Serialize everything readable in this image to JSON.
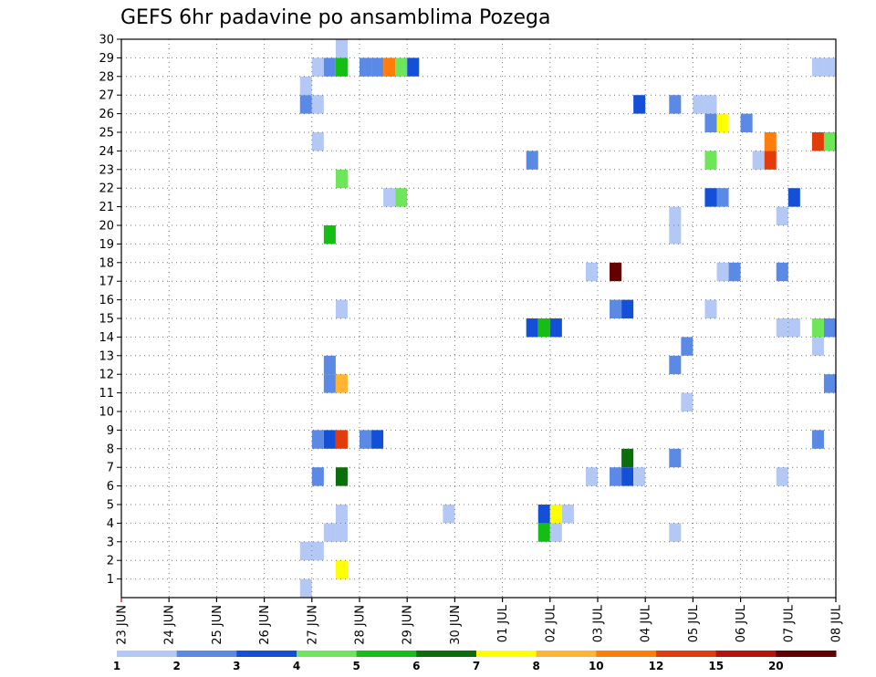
{
  "chart_data": {
    "type": "heatmap",
    "title": "GEFS 6hr padavine po ansamblima Pozega",
    "y_ticks": [
      "1",
      "2",
      "3",
      "4",
      "5",
      "6",
      "7",
      "8",
      "9",
      "10",
      "11",
      "12",
      "13",
      "14",
      "15",
      "16",
      "17",
      "18",
      "19",
      "20",
      "21",
      "22",
      "23",
      "24",
      "25",
      "26",
      "27",
      "28",
      "29",
      "30"
    ],
    "ylim": [
      0,
      30
    ],
    "x_tick_labels": [
      "23 JUN",
      "24 JUN",
      "25 JUN",
      "26 JUN",
      "27 JUN",
      "28 JUN",
      "29 JUN",
      "30 JUN",
      "01 JUL",
      "02 JUL",
      "03 JUL",
      "04 JUL",
      "05 JUL",
      "06 JUL",
      "07 JUL",
      "08 JUL"
    ],
    "x_step_unit": "6 h",
    "x_steps_per_day": 4,
    "grid": true,
    "colorbar": {
      "labels": [
        "1",
        "2",
        "3",
        "4",
        "5",
        "6",
        "7",
        "8",
        "10",
        "12",
        "15",
        "20"
      ],
      "colors": [
        "#b4c8f5",
        "#5a8ae6",
        "#1450d7",
        "#6ee65a",
        "#14be14",
        "#0a6e0a",
        "#ffff00",
        "#ffb432",
        "#ff7d0a",
        "#e13c0a",
        "#b4140a",
        "#640000"
      ]
    },
    "cells": [
      {
        "step": 16,
        "member": 0,
        "level": 0
      },
      {
        "step": 19,
        "member": 1,
        "level": 6
      },
      {
        "step": 16,
        "member": 2,
        "level": 0
      },
      {
        "step": 17,
        "member": 2,
        "level": 0
      },
      {
        "step": 18,
        "member": 3,
        "level": 0
      },
      {
        "step": 19,
        "member": 3,
        "level": 0
      },
      {
        "step": 36,
        "member": 3,
        "level": 4
      },
      {
        "step": 37,
        "member": 3,
        "level": 0
      },
      {
        "step": 47,
        "member": 3,
        "level": 0
      },
      {
        "step": 19,
        "member": 4,
        "level": 0
      },
      {
        "step": 28,
        "member": 4,
        "level": 0
      },
      {
        "step": 36,
        "member": 4,
        "level": 2
      },
      {
        "step": 37,
        "member": 4,
        "level": 6
      },
      {
        "step": 38,
        "member": 4,
        "level": 0
      },
      {
        "step": 17,
        "member": 6,
        "level": 1
      },
      {
        "step": 19,
        "member": 6,
        "level": 5
      },
      {
        "step": 40,
        "member": 6,
        "level": 0
      },
      {
        "step": 42,
        "member": 6,
        "level": 1
      },
      {
        "step": 43,
        "member": 6,
        "level": 2
      },
      {
        "step": 44,
        "member": 6,
        "level": 0
      },
      {
        "step": 56,
        "member": 6,
        "level": 0
      },
      {
        "step": 43,
        "member": 7,
        "level": 5
      },
      {
        "step": 47,
        "member": 7,
        "level": 1
      },
      {
        "step": 17,
        "member": 8,
        "level": 1
      },
      {
        "step": 18,
        "member": 8,
        "level": 2
      },
      {
        "step": 19,
        "member": 8,
        "level": 9
      },
      {
        "step": 21,
        "member": 8,
        "level": 1
      },
      {
        "step": 22,
        "member": 8,
        "level": 2
      },
      {
        "step": 59,
        "member": 8,
        "level": 1
      },
      {
        "step": 48,
        "member": 10,
        "level": 0
      },
      {
        "step": 18,
        "member": 11,
        "level": 1
      },
      {
        "step": 19,
        "member": 11,
        "level": 7
      },
      {
        "step": 60,
        "member": 11,
        "level": 1
      },
      {
        "step": 18,
        "member": 12,
        "level": 1
      },
      {
        "step": 47,
        "member": 12,
        "level": 1
      },
      {
        "step": 48,
        "member": 13,
        "level": 1
      },
      {
        "step": 59,
        "member": 13,
        "level": 0
      },
      {
        "step": 35,
        "member": 14,
        "level": 2
      },
      {
        "step": 36,
        "member": 14,
        "level": 4
      },
      {
        "step": 37,
        "member": 14,
        "level": 2
      },
      {
        "step": 56,
        "member": 14,
        "level": 0
      },
      {
        "step": 57,
        "member": 14,
        "level": 0
      },
      {
        "step": 59,
        "member": 14,
        "level": 3
      },
      {
        "step": 60,
        "member": 14,
        "level": 1
      },
      {
        "step": 19,
        "member": 15,
        "level": 0
      },
      {
        "step": 42,
        "member": 15,
        "level": 1
      },
      {
        "step": 43,
        "member": 15,
        "level": 2
      },
      {
        "step": 50,
        "member": 15,
        "level": 0
      },
      {
        "step": 40,
        "member": 17,
        "level": 0
      },
      {
        "step": 42,
        "member": 17,
        "level": 11
      },
      {
        "step": 51,
        "member": 17,
        "level": 0
      },
      {
        "step": 52,
        "member": 17,
        "level": 1
      },
      {
        "step": 56,
        "member": 17,
        "level": 1
      },
      {
        "step": 18,
        "member": 19,
        "level": 4
      },
      {
        "step": 47,
        "member": 19,
        "level": 0
      },
      {
        "step": 47,
        "member": 20,
        "level": 0
      },
      {
        "step": 56,
        "member": 20,
        "level": 0
      },
      {
        "step": 23,
        "member": 21,
        "level": 0
      },
      {
        "step": 24,
        "member": 21,
        "level": 3
      },
      {
        "step": 50,
        "member": 21,
        "level": 2
      },
      {
        "step": 51,
        "member": 21,
        "level": 1
      },
      {
        "step": 57,
        "member": 21,
        "level": 2
      },
      {
        "step": 19,
        "member": 22,
        "level": 3
      },
      {
        "step": 35,
        "member": 23,
        "level": 1
      },
      {
        "step": 50,
        "member": 23,
        "level": 3
      },
      {
        "step": 54,
        "member": 23,
        "level": 0
      },
      {
        "step": 55,
        "member": 23,
        "level": 9
      },
      {
        "step": 17,
        "member": 24,
        "level": 0
      },
      {
        "step": 55,
        "member": 24,
        "level": 8
      },
      {
        "step": 59,
        "member": 24,
        "level": 9
      },
      {
        "step": 60,
        "member": 24,
        "level": 3
      },
      {
        "step": 50,
        "member": 25,
        "level": 1
      },
      {
        "step": 51,
        "member": 25,
        "level": 6
      },
      {
        "step": 53,
        "member": 25,
        "level": 1
      },
      {
        "step": 16,
        "member": 26,
        "level": 1
      },
      {
        "step": 17,
        "member": 26,
        "level": 0
      },
      {
        "step": 44,
        "member": 26,
        "level": 2
      },
      {
        "step": 47,
        "member": 26,
        "level": 1
      },
      {
        "step": 49,
        "member": 26,
        "level": 0
      },
      {
        "step": 50,
        "member": 26,
        "level": 0
      },
      {
        "step": 16,
        "member": 27,
        "level": 0
      },
      {
        "step": 17,
        "member": 28,
        "level": 0
      },
      {
        "step": 18,
        "member": 28,
        "level": 1
      },
      {
        "step": 19,
        "member": 28,
        "level": 4
      },
      {
        "step": 21,
        "member": 28,
        "level": 1
      },
      {
        "step": 22,
        "member": 28,
        "level": 1
      },
      {
        "step": 23,
        "member": 28,
        "level": 8
      },
      {
        "step": 24,
        "member": 28,
        "level": 3
      },
      {
        "step": 25,
        "member": 28,
        "level": 2
      },
      {
        "step": 59,
        "member": 28,
        "level": 0
      },
      {
        "step": 60,
        "member": 28,
        "level": 0
      },
      {
        "step": 19,
        "member": 29,
        "level": 0
      }
    ]
  }
}
